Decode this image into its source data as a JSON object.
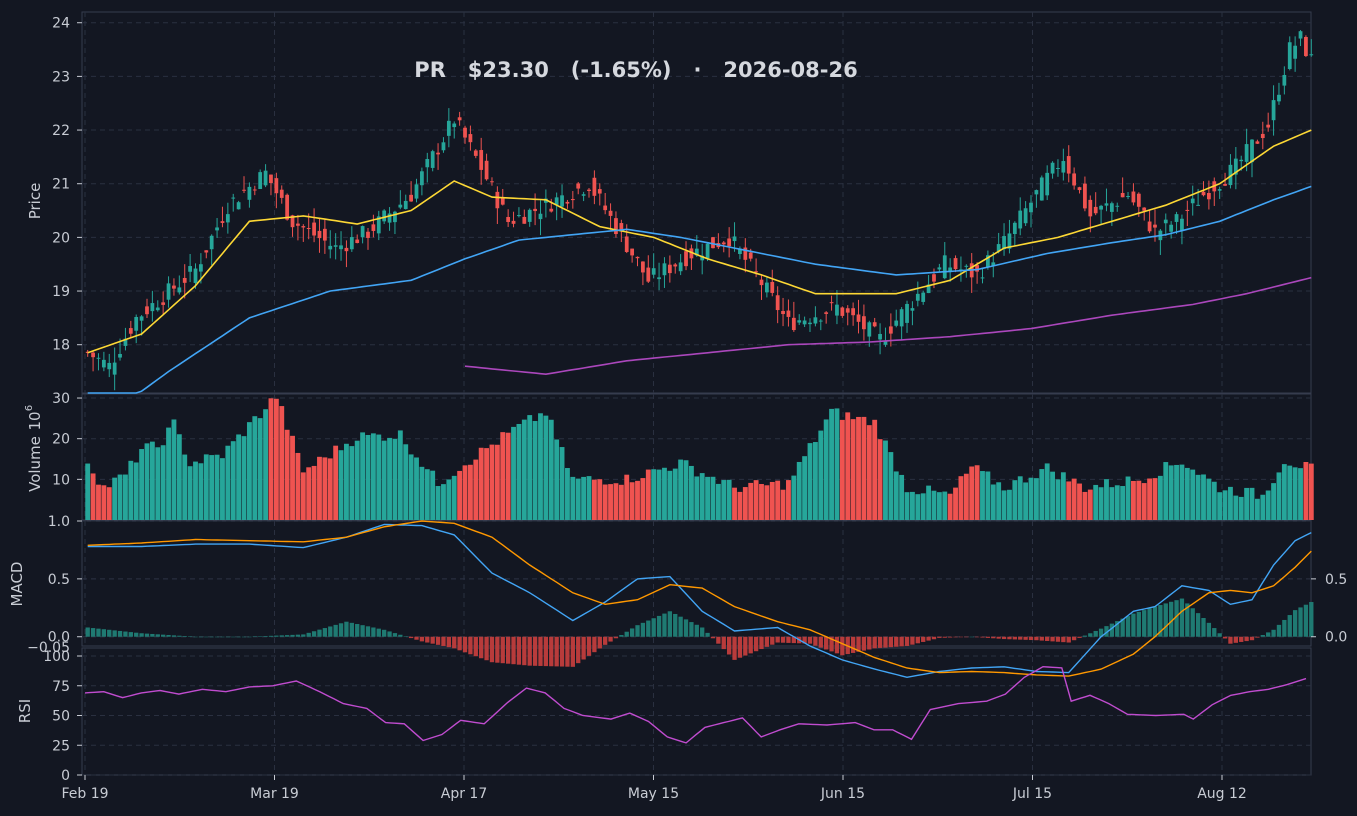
{
  "chart_data": {
    "type": "candlestick",
    "title": "PR   $23.30   (-1.65%)   ·   2026-08-26",
    "ticker": "PR",
    "last_price": "$23.30",
    "change": "(-1.65%)",
    "date": "2026-08-26",
    "x_tick_labels": [
      "Feb 19",
      "Mar 19",
      "Apr 17",
      "May 15",
      "Jun 15",
      "Jul 15",
      "Aug 12"
    ],
    "colors": {
      "background": "#131722",
      "grid": "#2a3040",
      "text": "#c8ccd4",
      "up": "#26a69a",
      "down": "#ef5350",
      "sma_fast": "#fdd835",
      "sma_mid": "#42a5f5",
      "sma_slow": "#ab47bc",
      "macd_line": "#42a5f5",
      "signal_line": "#ff9800",
      "rsi_line": "#c04ccf"
    },
    "panels": {
      "price": {
        "ylabel": "Price",
        "ylim": [
          17.1,
          24.2
        ],
        "yticks": [
          "18",
          "19",
          "20",
          "21",
          "22",
          "23",
          "24"
        ]
      },
      "volume": {
        "ylabel": "Volume",
        "exponent_label": "10",
        "exponent_power": "6",
        "ylim": [
          0,
          30.5
        ],
        "yticks": [
          "10",
          "20",
          "30"
        ]
      },
      "macd": {
        "ylabel": "MACD",
        "ylim": [
          -0.08,
          1.0
        ],
        "yticks_left": [
          "0.0",
          "0.5",
          "1.0"
        ],
        "yticks_right": [
          "0.0",
          "0.5"
        ],
        "overlap_tick": "−0.05"
      },
      "rsi": {
        "ylabel": "RSI",
        "ylim": [
          0,
          100
        ],
        "yticks": [
          "0",
          "25",
          "50",
          "75",
          "100"
        ]
      }
    },
    "key_points": {
      "close": [
        [
          0,
          17.85
        ],
        [
          4,
          17.6
        ],
        [
          9,
          18.5
        ],
        [
          14,
          18.9
        ],
        [
          20,
          19.4
        ],
        [
          26,
          20.6
        ],
        [
          33,
          21.2
        ],
        [
          38,
          20.3
        ],
        [
          46,
          19.8
        ],
        [
          52,
          20.1
        ],
        [
          60,
          20.8
        ],
        [
          68,
          22.2
        ],
        [
          73,
          21.3
        ],
        [
          78,
          20.3
        ],
        [
          85,
          20.6
        ],
        [
          93,
          21.0
        ],
        [
          98,
          20.2
        ],
        [
          104,
          19.2
        ],
        [
          112,
          19.7
        ],
        [
          119,
          20.0
        ],
        [
          124,
          19.3
        ],
        [
          130,
          18.4
        ],
        [
          139,
          18.7
        ],
        [
          147,
          18.1
        ],
        [
          152,
          18.7
        ],
        [
          159,
          19.5
        ],
        [
          165,
          19.3
        ],
        [
          170,
          19.9
        ],
        [
          178,
          21.1
        ],
        [
          181,
          21.5
        ],
        [
          186,
          20.4
        ],
        [
          193,
          20.8
        ],
        [
          198,
          20.1
        ],
        [
          202,
          20.3
        ],
        [
          207,
          20.8
        ],
        [
          213,
          21.3
        ],
        [
          219,
          22.1
        ],
        [
          221,
          22.8
        ],
        [
          223,
          23.5
        ],
        [
          225,
          23.7
        ],
        [
          227,
          23.3
        ]
      ],
      "volume": [
        [
          0,
          14.5
        ],
        [
          3,
          8
        ],
        [
          7,
          11
        ],
        [
          10,
          17.5
        ],
        [
          13,
          18
        ],
        [
          16,
          23.5
        ],
        [
          19,
          14
        ],
        [
          25,
          16
        ],
        [
          35,
          30.5
        ],
        [
          40,
          12
        ],
        [
          50,
          20.5
        ],
        [
          58,
          21
        ],
        [
          65,
          9
        ],
        [
          70,
          14
        ],
        [
          80,
          23
        ],
        [
          85,
          26.5
        ],
        [
          90,
          10
        ],
        [
          100,
          10
        ],
        [
          110,
          14
        ],
        [
          120,
          8
        ],
        [
          130,
          9
        ],
        [
          138,
          26.5
        ],
        [
          146,
          24
        ],
        [
          152,
          8
        ],
        [
          160,
          6
        ],
        [
          164,
          13
        ],
        [
          170,
          8
        ],
        [
          178,
          12.8
        ],
        [
          185,
          8
        ],
        [
          195,
          10
        ],
        [
          203,
          14.5
        ],
        [
          210,
          8
        ],
        [
          218,
          6
        ],
        [
          222,
          14.8
        ],
        [
          227,
          12.5
        ]
      ],
      "sma_fast": [
        [
          0,
          17.85
        ],
        [
          10,
          18.2
        ],
        [
          20,
          19.1
        ],
        [
          30,
          20.3
        ],
        [
          40,
          20.4
        ],
        [
          50,
          20.25
        ],
        [
          60,
          20.5
        ],
        [
          68,
          21.05
        ],
        [
          75,
          20.75
        ],
        [
          85,
          20.7
        ],
        [
          95,
          20.2
        ],
        [
          105,
          20.0
        ],
        [
          115,
          19.6
        ],
        [
          125,
          19.3
        ],
        [
          135,
          18.95
        ],
        [
          150,
          18.95
        ],
        [
          160,
          19.2
        ],
        [
          170,
          19.8
        ],
        [
          180,
          20.0
        ],
        [
          190,
          20.3
        ],
        [
          200,
          20.6
        ],
        [
          210,
          21.0
        ],
        [
          220,
          21.7
        ],
        [
          227,
          22.0
        ]
      ],
      "sma_mid": [
        [
          0,
          16.4
        ],
        [
          15,
          17.5
        ],
        [
          30,
          18.5
        ],
        [
          45,
          19.0
        ],
        [
          60,
          19.2
        ],
        [
          70,
          19.6
        ],
        [
          80,
          19.95
        ],
        [
          90,
          20.05
        ],
        [
          100,
          20.15
        ],
        [
          110,
          20.0
        ],
        [
          120,
          19.8
        ],
        [
          135,
          19.5
        ],
        [
          150,
          19.3
        ],
        [
          165,
          19.4
        ],
        [
          178,
          19.7
        ],
        [
          190,
          19.9
        ],
        [
          200,
          20.05
        ],
        [
          210,
          20.3
        ],
        [
          220,
          20.7
        ],
        [
          227,
          20.95
        ]
      ],
      "sma_slow": [
        [
          70,
          17.6
        ],
        [
          85,
          17.45
        ],
        [
          100,
          17.7
        ],
        [
          115,
          17.85
        ],
        [
          130,
          18.0
        ],
        [
          145,
          18.05
        ],
        [
          160,
          18.15
        ],
        [
          175,
          18.3
        ],
        [
          190,
          18.55
        ],
        [
          205,
          18.75
        ],
        [
          215,
          18.95
        ],
        [
          227,
          19.25
        ]
      ],
      "macd": [
        [
          0,
          0.78
        ],
        [
          10,
          0.78
        ],
        [
          20,
          0.8
        ],
        [
          30,
          0.8
        ],
        [
          40,
          0.77
        ],
        [
          48,
          0.86
        ],
        [
          55,
          0.97
        ],
        [
          62,
          0.96
        ],
        [
          68,
          0.88
        ],
        [
          75,
          0.55
        ],
        [
          82,
          0.38
        ],
        [
          90,
          0.14
        ],
        [
          96,
          0.3
        ],
        [
          102,
          0.5
        ],
        [
          108,
          0.52
        ],
        [
          114,
          0.22
        ],
        [
          120,
          0.05
        ],
        [
          128,
          0.08
        ],
        [
          134,
          -0.08
        ],
        [
          140,
          -0.2
        ],
        [
          146,
          -0.28
        ],
        [
          152,
          -0.35
        ],
        [
          158,
          -0.3
        ],
        [
          164,
          -0.27
        ],
        [
          170,
          -0.26
        ],
        [
          176,
          -0.3
        ],
        [
          182,
          -0.31
        ],
        [
          188,
          0.0
        ],
        [
          194,
          0.22
        ],
        [
          198,
          0.26
        ],
        [
          203,
          0.44
        ],
        [
          208,
          0.4
        ],
        [
          212,
          0.28
        ],
        [
          216,
          0.32
        ],
        [
          220,
          0.62
        ],
        [
          224,
          0.83
        ],
        [
          227,
          0.9
        ]
      ],
      "signal": [
        [
          0,
          0.79
        ],
        [
          10,
          0.81
        ],
        [
          20,
          0.84
        ],
        [
          30,
          0.83
        ],
        [
          40,
          0.82
        ],
        [
          48,
          0.86
        ],
        [
          55,
          0.95
        ],
        [
          62,
          1.0
        ],
        [
          68,
          0.98
        ],
        [
          75,
          0.86
        ],
        [
          82,
          0.62
        ],
        [
          90,
          0.38
        ],
        [
          96,
          0.28
        ],
        [
          102,
          0.32
        ],
        [
          108,
          0.45
        ],
        [
          114,
          0.42
        ],
        [
          120,
          0.26
        ],
        [
          128,
          0.13
        ],
        [
          134,
          0.06
        ],
        [
          140,
          -0.06
        ],
        [
          146,
          -0.18
        ],
        [
          152,
          -0.27
        ],
        [
          158,
          -0.31
        ],
        [
          164,
          -0.3
        ],
        [
          170,
          -0.31
        ],
        [
          176,
          -0.33
        ],
        [
          182,
          -0.34
        ],
        [
          188,
          -0.28
        ],
        [
          194,
          -0.15
        ],
        [
          198,
          0.0
        ],
        [
          203,
          0.22
        ],
        [
          208,
          0.38
        ],
        [
          212,
          0.4
        ],
        [
          216,
          0.38
        ],
        [
          220,
          0.44
        ],
        [
          224,
          0.6
        ],
        [
          227,
          0.74
        ]
      ],
      "hist": [
        [
          0,
          0.08
        ],
        [
          10,
          0.03
        ],
        [
          20,
          0.0
        ],
        [
          30,
          0.0
        ],
        [
          40,
          0.02
        ],
        [
          48,
          0.13
        ],
        [
          55,
          0.06
        ],
        [
          62,
          -0.04
        ],
        [
          68,
          -0.1
        ],
        [
          75,
          -0.22
        ],
        [
          82,
          -0.25
        ],
        [
          90,
          -0.26
        ],
        [
          96,
          -0.07
        ],
        [
          102,
          0.1
        ],
        [
          108,
          0.22
        ],
        [
          114,
          0.08
        ],
        [
          120,
          -0.2
        ],
        [
          128,
          -0.05
        ],
        [
          134,
          -0.06
        ],
        [
          140,
          -0.16
        ],
        [
          146,
          -0.1
        ],
        [
          152,
          -0.08
        ],
        [
          158,
          -0.01
        ],
        [
          164,
          0.0
        ],
        [
          170,
          -0.02
        ],
        [
          176,
          -0.03
        ],
        [
          182,
          -0.05
        ],
        [
          188,
          0.07
        ],
        [
          194,
          0.2
        ],
        [
          198,
          0.26
        ],
        [
          203,
          0.33
        ],
        [
          208,
          0.12
        ],
        [
          212,
          -0.06
        ],
        [
          216,
          -0.03
        ],
        [
          220,
          0.06
        ],
        [
          224,
          0.23
        ],
        [
          227,
          0.3
        ]
      ],
      "rsi": [
        [
          0,
          69
        ],
        [
          4,
          70
        ],
        [
          8,
          65
        ],
        [
          12,
          69
        ],
        [
          16,
          71
        ],
        [
          20,
          68
        ],
        [
          25,
          72
        ],
        [
          30,
          70
        ],
        [
          35,
          74
        ],
        [
          40,
          75
        ],
        [
          45,
          79
        ],
        [
          50,
          70
        ],
        [
          55,
          60
        ],
        [
          60,
          56
        ],
        [
          64,
          44
        ],
        [
          68,
          43
        ],
        [
          72,
          29
        ],
        [
          76,
          34
        ],
        [
          80,
          46
        ],
        [
          85,
          43
        ],
        [
          90,
          61
        ],
        [
          94,
          73
        ],
        [
          98,
          69
        ],
        [
          102,
          56
        ],
        [
          106,
          50
        ],
        [
          112,
          47
        ],
        [
          116,
          52
        ],
        [
          120,
          45
        ],
        [
          124,
          32
        ],
        [
          128,
          27
        ],
        [
          132,
          40
        ],
        [
          136,
          44
        ],
        [
          140,
          48
        ],
        [
          144,
          32
        ],
        [
          148,
          38
        ],
        [
          152,
          43
        ],
        [
          158,
          42
        ],
        [
          164,
          44
        ],
        [
          168,
          38
        ],
        [
          172,
          38
        ],
        [
          176,
          30
        ],
        [
          180,
          55
        ],
        [
          186,
          60
        ],
        [
          192,
          62
        ],
        [
          196,
          68
        ],
        [
          200,
          82
        ],
        [
          204,
          91
        ],
        [
          208,
          90
        ],
        [
          210,
          62
        ],
        [
          214,
          67
        ],
        [
          218,
          60
        ],
        [
          222,
          51
        ],
        [
          228,
          50
        ],
        [
          234,
          51
        ],
        [
          236,
          47
        ],
        [
          240,
          59
        ],
        [
          244,
          67
        ],
        [
          248,
          70
        ],
        [
          252,
          72
        ],
        [
          256,
          76
        ],
        [
          260,
          81
        ]
      ]
    }
  }
}
